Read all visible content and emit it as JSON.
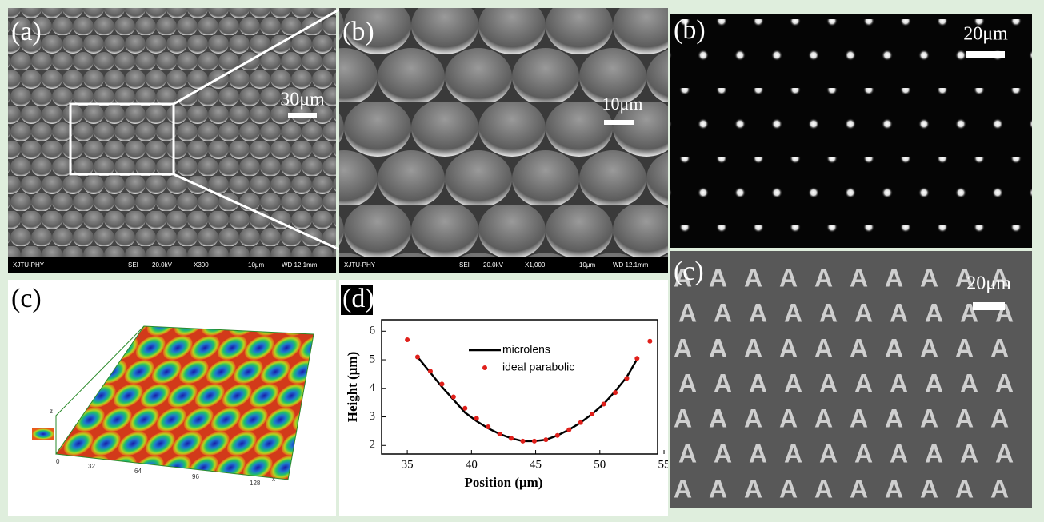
{
  "panels": [
    {
      "label": "(a)",
      "scale": "30μm",
      "info": [
        "XJTU-PHY",
        "SEI",
        "20.0kV",
        "X300",
        "10μm",
        "WD 12.1mm"
      ]
    },
    {
      "label": "(b)",
      "scale": "10μm",
      "info": [
        "XJTU-PHY",
        "SEI",
        "20.0kV",
        "X1,000",
        "10μm",
        "WD 12.1mm"
      ]
    },
    {
      "label": "(b)",
      "scale": "20μm"
    },
    {
      "label": "(c)",
      "scale": "20μm",
      "letter": "A"
    },
    {
      "label": "(c)",
      "axis_labels": [
        "0",
        "32",
        "64",
        "96",
        "128",
        "x",
        "z"
      ]
    }
  ],
  "chart_data": {
    "type": "line",
    "panel_label": "(d)",
    "x_label": "Position (μm)",
    "y_label": "Height (μm)",
    "xlim": [
      33,
      54.5
    ],
    "ylim": [
      1.7,
      6.4
    ],
    "xticks": [
      35,
      40,
      45,
      50,
      55
    ],
    "yticks": [
      2,
      3,
      4,
      5,
      6
    ],
    "series": [
      {
        "name": "microlens",
        "color": "#000000",
        "style": "line",
        "x": [
          35.8,
          36.8,
          37.7,
          38.6,
          39.5,
          40.4,
          41.3,
          42.2,
          43.1,
          44,
          44.9,
          45.8,
          46.7,
          47.6,
          48.5,
          49.4,
          50.3,
          51.2,
          52.1,
          53
        ],
        "values": [
          5.1,
          4.55,
          4.05,
          3.6,
          3.15,
          2.85,
          2.6,
          2.4,
          2.25,
          2.15,
          2.15,
          2.2,
          2.35,
          2.55,
          2.8,
          3.1,
          3.45,
          3.9,
          4.4,
          5.1
        ]
      },
      {
        "name": "ideal parabolic",
        "color": "#e0201b",
        "style": "markers",
        "x": [
          35,
          35.8,
          36.8,
          37.7,
          38.6,
          39.5,
          40.4,
          41.3,
          42.2,
          43.1,
          44,
          44.9,
          45.8,
          46.7,
          47.6,
          48.5,
          49.4,
          50.3,
          51.2,
          52.1,
          52.9,
          53.9
        ],
        "values": [
          5.7,
          5.1,
          4.6,
          4.15,
          3.7,
          3.3,
          2.95,
          2.65,
          2.4,
          2.25,
          2.15,
          2.15,
          2.2,
          2.35,
          2.55,
          2.8,
          3.1,
          3.45,
          3.85,
          4.35,
          5.05,
          5.65
        ]
      }
    ]
  }
}
